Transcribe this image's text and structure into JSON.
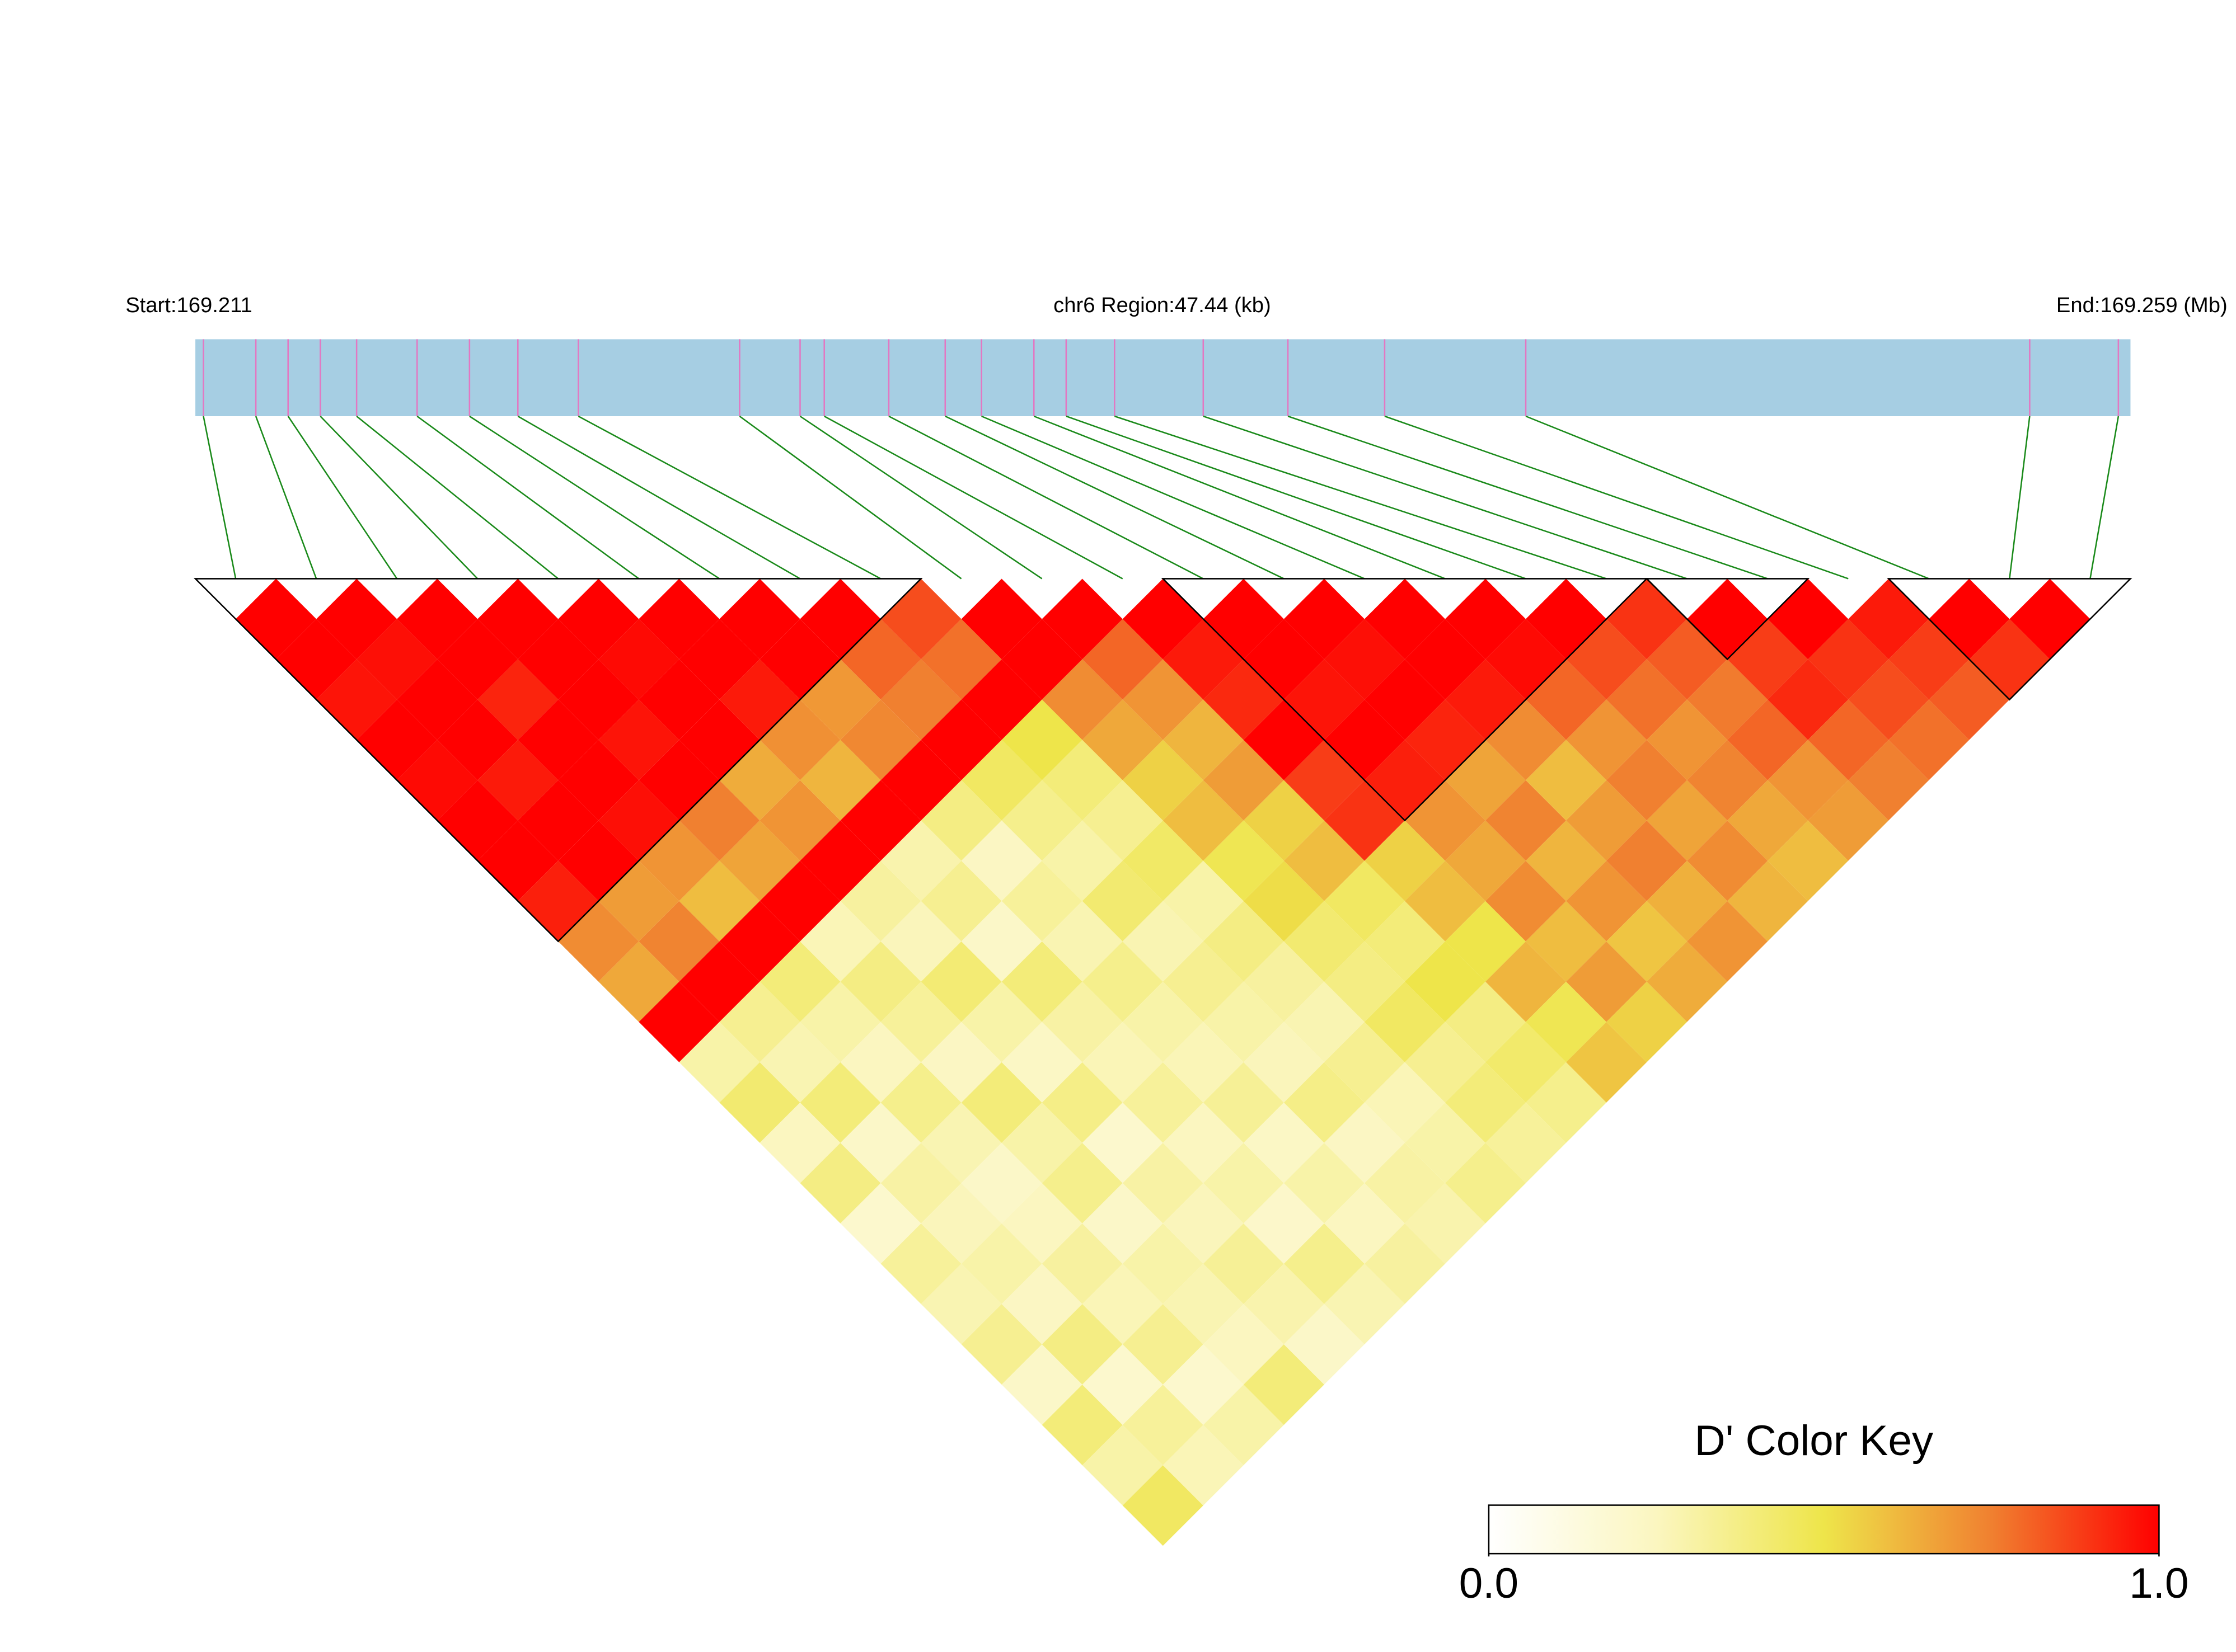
{
  "chart_data": {
    "type": "ldheatmap",
    "start_label": "Start:169.211",
    "region_label": "chr6 Region:47.44 (kb)",
    "end_label": "End:169.259 (Mb)",
    "key_title": "D' Color Key",
    "xlim": [
      169.211,
      169.259
    ],
    "snp_positions": [
      169.2112,
      169.2125,
      169.2133,
      169.2141,
      169.215,
      169.2165,
      169.2178,
      169.219,
      169.2205,
      169.2245,
      169.226,
      169.2266,
      169.2282,
      169.2296,
      169.2305,
      169.2318,
      169.2326,
      169.2338,
      169.236,
      169.2381,
      169.2405,
      169.244,
      169.2565,
      169.2587
    ],
    "dprime": [
      [
        1,
        1,
        0.96,
        1,
        0.98,
        1,
        1,
        0.94,
        0.72,
        0.65,
        1,
        0.3,
        0.42,
        0.25,
        0.38,
        0.2,
        0.33,
        0.28,
        0.35,
        0.22,
        0.4,
        0.3,
        0.45
      ],
      [
        1,
        0.97,
        1,
        1,
        0.95,
        1,
        1,
        0.68,
        0.74,
        1,
        0.35,
        0.28,
        0.4,
        0.22,
        0.31,
        0.26,
        0.3,
        0.24,
        0.38,
        0.2,
        0.33,
        0.27
      ],
      [
        1,
        1,
        0.93,
        1,
        1,
        0.97,
        0.7,
        0.6,
        1,
        0.4,
        0.3,
        0.25,
        0.36,
        0.28,
        0.22,
        0.25,
        0.32,
        0.27,
        0.35,
        0.2,
        0.3
      ],
      [
        1,
        1,
        1,
        0.96,
        1,
        0.75,
        0.66,
        1,
        0.27,
        0.38,
        0.33,
        0.24,
        0.4,
        0.3,
        0.36,
        0.22,
        0.3,
        0.28,
        0.25,
        0.4
      ],
      [
        1,
        0.98,
        1,
        1,
        0.64,
        0.7,
        1,
        0.32,
        0.26,
        0.41,
        0.3,
        0.23,
        0.37,
        0.2,
        0.31,
        0.26,
        0.34,
        0.29,
        0.22
      ],
      [
        1,
        1,
        0.95,
        0.71,
        0.62,
        1,
        0.29,
        0.35,
        0.22,
        0.4,
        0.31,
        0.27,
        0.33,
        0.25,
        0.3,
        0.21,
        0.36,
        0.28
      ],
      [
        1,
        1,
        0.69,
        0.73,
        1,
        0.38,
        0.24,
        0.33,
        0.28,
        0.36,
        0.3,
        0.27,
        0.34,
        0.23,
        0.3,
        0.25,
        0.32
      ],
      [
        1,
        0.8,
        0.75,
        1,
        0.45,
        0.36,
        0.3,
        0.42,
        0.28,
        0.35,
        0.3,
        0.26,
        0.37,
        0.24,
        0.31,
        0.29
      ],
      [
        0.85,
        0.78,
        1,
        0.5,
        0.4,
        0.35,
        0.44,
        0.3,
        0.38,
        0.32,
        0.28,
        0.35,
        0.27,
        0.3,
        0.36
      ],
      [
        1,
        1,
        0.72,
        0.65,
        0.55,
        0.6,
        0.48,
        0.52,
        0.42,
        0.38,
        0.45,
        0.35,
        0.4,
        0.33
      ],
      [
        1,
        0.8,
        0.7,
        0.62,
        0.68,
        0.55,
        0.6,
        0.45,
        0.4,
        0.5,
        0.38,
        0.43,
        0.36
      ],
      [
        1,
        0.95,
        0.92,
        1,
        0.88,
        0.9,
        0.55,
        0.6,
        0.5,
        0.62,
        0.48,
        0.58
      ],
      [
        1,
        1,
        0.96,
        1,
        0.94,
        0.7,
        0.65,
        0.72,
        0.6,
        0.68,
        0.55
      ],
      [
        1,
        0.97,
        1,
        0.93,
        0.66,
        0.74,
        0.62,
        0.7,
        0.58,
        0.64
      ],
      [
        1,
        1,
        0.95,
        0.72,
        0.6,
        0.68,
        0.75,
        0.63,
        0.7
      ],
      [
        1,
        0.98,
        0.8,
        0.7,
        0.75,
        0.66,
        0.72,
        0.62
      ],
      [
        1,
        0.85,
        0.78,
        0.7,
        0.74,
        0.65,
        0.6
      ],
      [
        0.9,
        0.82,
        0.76,
        0.8,
        0.7,
        0.68
      ],
      [
        1,
        0.88,
        0.92,
        0.8,
        0.75
      ],
      [
        1,
        0.9,
        0.85,
        0.78
      ],
      [
        0.95,
        0.88,
        0.82
      ],
      [
        1,
        0.9
      ],
      [
        1
      ]
    ],
    "blocks": [
      [
        0,
        8
      ],
      [
        12,
        17
      ],
      [
        18,
        19
      ],
      [
        21,
        23
      ]
    ],
    "zlim": [
      0,
      1
    ],
    "zticks": [
      {
        "value": 0,
        "label": "0.0"
      },
      {
        "value": 1,
        "label": "1.0"
      }
    ],
    "colormap": [
      "#ffffff",
      "#fbf6c0",
      "#eee54a",
      "#f08030",
      "#ff0000"
    ],
    "bar_color": "#a6cee3",
    "snp_tick_color": "#e377c2",
    "connector_color": "#1a8a1a"
  }
}
